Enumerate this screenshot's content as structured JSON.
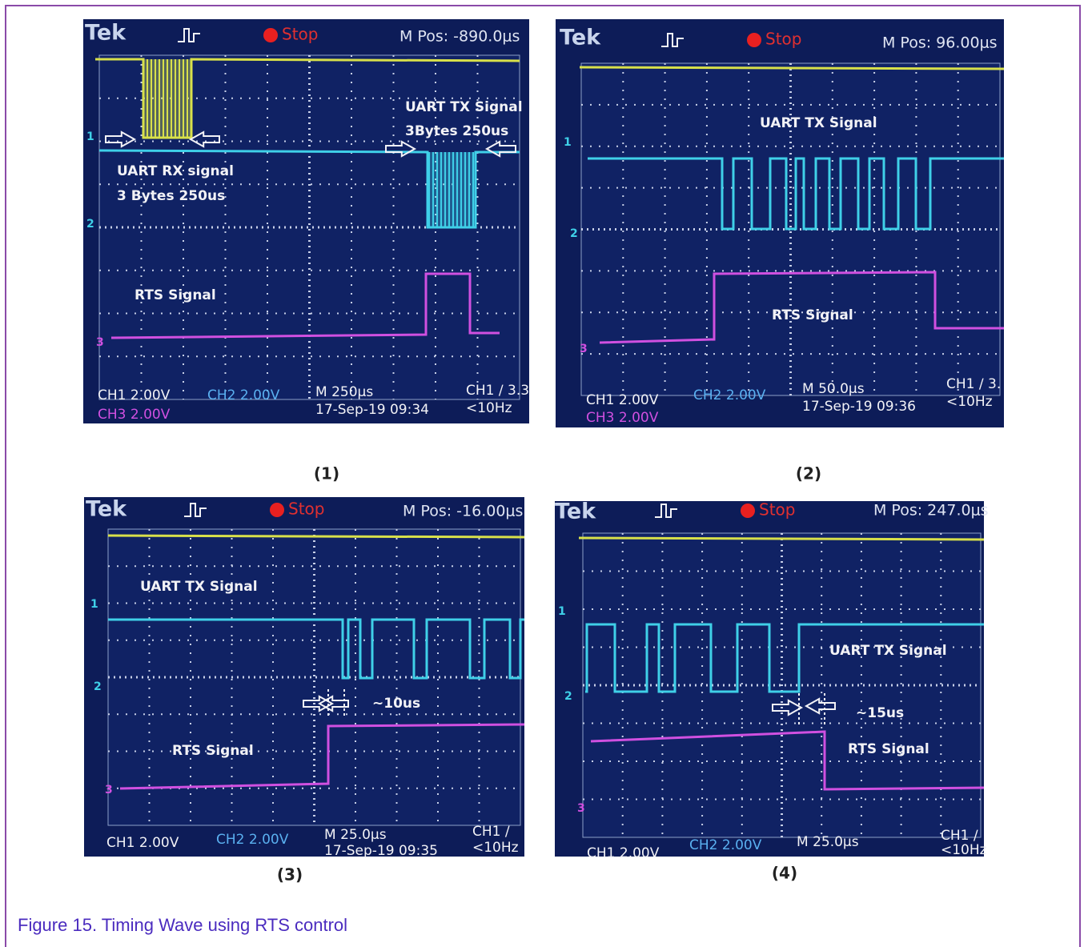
{
  "panels": [
    {
      "label": "(1)",
      "brand": "Tek",
      "status": "Stop",
      "position": "M Pos: -890.0μs",
      "annotations": [
        "UART TX Signal",
        "3Bytes 250us",
        "UART RX signal",
        "3 Bytes 250us",
        "RTS Signal"
      ],
      "markers": [
        "1",
        "2",
        "3"
      ],
      "footer": [
        "CH1  2.00V",
        "CH3  2.00V",
        "CH2  2.00V",
        "M 250μs",
        "17-Sep-19 09:34",
        "CH1 ∕ 3.3",
        "<10Hz"
      ]
    },
    {
      "label": "(2)",
      "brand": "Tek",
      "status": "Stop",
      "position": "M Pos: 96.00μs",
      "annotations": [
        "UART TX Signal",
        "RTS Signal"
      ],
      "markers": [
        "1",
        "2",
        "3"
      ],
      "footer": [
        "CH1  2.00V",
        "CH3  2.00V",
        "CH2  2.00V",
        "M 50.0μs",
        "17-Sep-19 09:36",
        "CH1 ∕ 3.",
        "<10Hz"
      ]
    },
    {
      "label": "(3)",
      "brand": "Tek",
      "status": "Stop",
      "position": "M Pos: -16.00μs",
      "annotations": [
        "UART TX Signal",
        "RTS Signal",
        "~10us"
      ],
      "markers": [
        "1",
        "2",
        "3"
      ],
      "footer": [
        "CH1  2.00V",
        "CH2  2.00V",
        "M 25.0μs",
        "17-Sep-19 09:35",
        "CH1 ∕",
        "<10Hz"
      ]
    },
    {
      "label": "(4)",
      "brand": "Tek",
      "status": "Stop",
      "position": "M Pos: 247.0μs",
      "annotations": [
        "UART TX Signal",
        "RTS Signal",
        "~15us"
      ],
      "markers": [
        "1",
        "2",
        "3"
      ],
      "footer": [
        "CH1  2.00V",
        "CH2  2.00V",
        "M 25.0μs",
        "CH1 ∕",
        "<10Hz"
      ]
    }
  ],
  "caption": "Figure 15.  Timing Wave using RTS control"
}
